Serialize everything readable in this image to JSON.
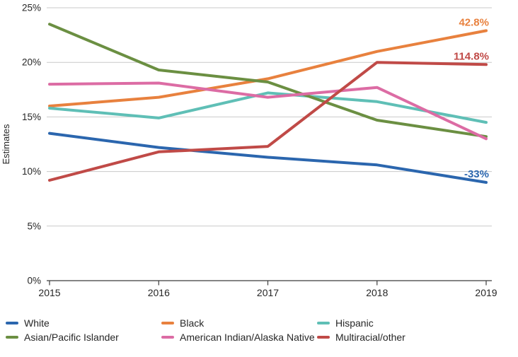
{
  "chart": {
    "ylabel": "Estimates",
    "accent_colors": {
      "grid": "#c9c9c9",
      "axis": "#3c3c3c",
      "text": "#262626"
    }
  },
  "chart_data": {
    "type": "line",
    "title": "",
    "xlabel": "",
    "ylabel": "Estimates",
    "x": [
      2015,
      2016,
      2017,
      2018,
      2019
    ],
    "ylim": [
      0,
      25
    ],
    "yticks": [
      "0%",
      "5%",
      "10%",
      "15%",
      "20%",
      "25%"
    ],
    "grid": true,
    "legend_position": "bottom",
    "series": [
      {
        "name": "White",
        "color": "#2b66ae",
        "values": [
          13.5,
          12.2,
          11.3,
          10.6,
          9.0
        ],
        "end_label": "-33%"
      },
      {
        "name": "Black",
        "color": "#e8813e",
        "values": [
          16.0,
          16.8,
          18.5,
          21.0,
          22.9
        ],
        "end_label": "42.8%"
      },
      {
        "name": "Hispanic",
        "color": "#5fbfb6",
        "values": [
          15.8,
          14.9,
          17.2,
          16.4,
          14.5
        ],
        "end_label": null
      },
      {
        "name": "Asian/Pacific Islander",
        "color": "#6b8f42",
        "values": [
          23.5,
          19.3,
          18.2,
          14.7,
          13.2
        ],
        "end_label": null
      },
      {
        "name": "American Indian/Alaska Native",
        "color": "#dc6ca4",
        "values": [
          18.0,
          18.1,
          16.8,
          17.7,
          13.0
        ],
        "end_label": null
      },
      {
        "name": "Multiracial/other",
        "color": "#c04a47",
        "values": [
          9.2,
          11.8,
          12.3,
          20.0,
          19.8
        ],
        "end_label": "114.8%"
      }
    ]
  }
}
